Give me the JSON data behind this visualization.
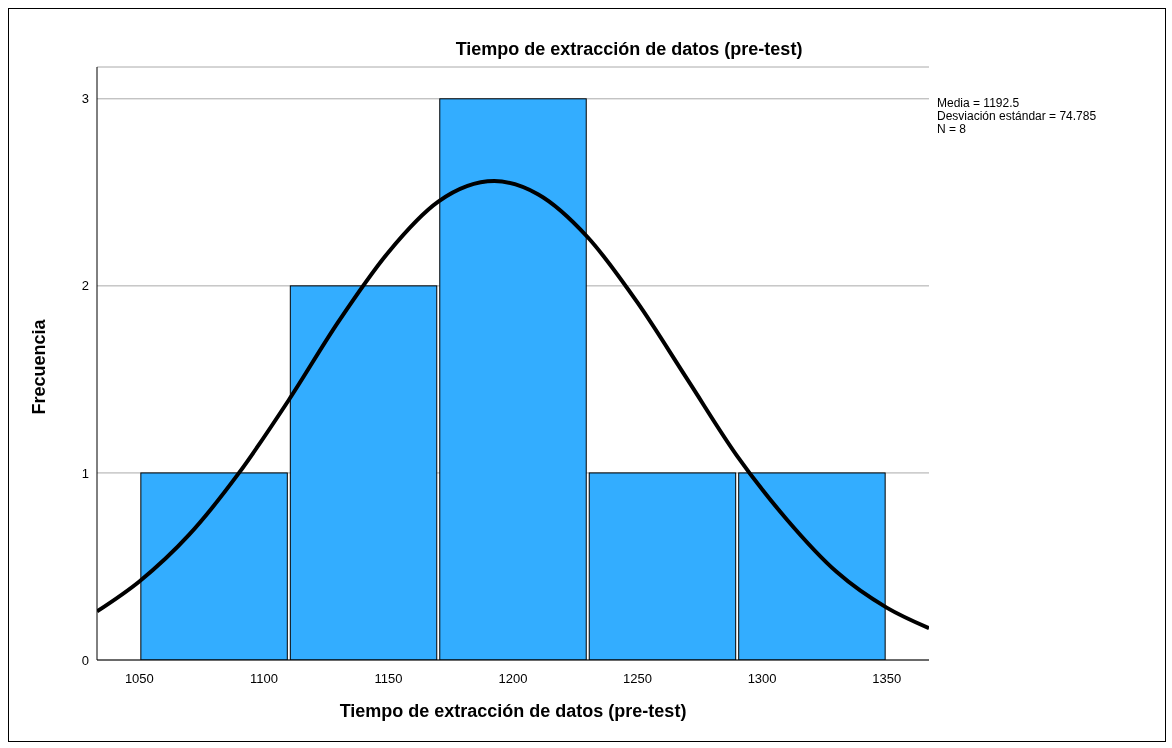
{
  "chart_data": {
    "type": "histogram",
    "title": "Tiempo de extracción de datos (pre-test)",
    "xlabel": "Tiempo de extracción de datos (pre-test)",
    "ylabel": "Frecuencia",
    "bins": [
      1050,
      1110,
      1170,
      1230,
      1290,
      1350
    ],
    "values": [
      1,
      2,
      3,
      1,
      1
    ],
    "color": "#33adff",
    "series": [
      {
        "type": "line",
        "color": "#000000",
        "x": [
          1033,
          1050,
          1070,
          1090,
          1110,
          1130,
          1150,
          1170,
          1192.5,
          1210,
          1230,
          1250,
          1270,
          1290,
          1310,
          1330,
          1350,
          1367
        ],
        "values": [
          0.26,
          0.42,
          0.67,
          1.0,
          1.39,
          1.81,
          2.18,
          2.45,
          2.56,
          2.49,
          2.26,
          1.91,
          1.5,
          1.09,
          0.75,
          0.47,
          0.28,
          0.17
        ]
      }
    ],
    "xlim": [
      1033,
      1367
    ],
    "xticks": [
      1050,
      1100,
      1150,
      1200,
      1250,
      1300,
      1350
    ],
    "ylim": [
      0,
      3.17
    ],
    "yticks": [
      0,
      1,
      2,
      3
    ],
    "grid": "y",
    "marker": "none",
    "line_style": "solid",
    "annotations": [
      "Media = 1192.5",
      "Desviación estándar = 74.785",
      "N = 8"
    ]
  }
}
